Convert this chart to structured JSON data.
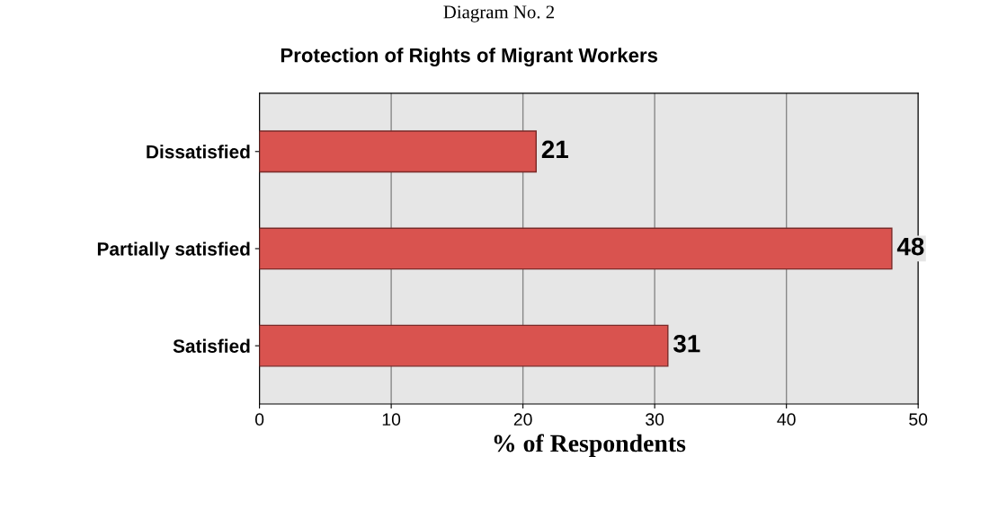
{
  "chart_data": {
    "type": "bar",
    "orientation": "horizontal",
    "title": "Protection of Rights of Migrant Workers",
    "xlabel": "% of Respondents",
    "annotations": [
      "Diagram No. 2"
    ],
    "categories": [
      "Dissatisfied",
      "Partially satisfied",
      "Satisfied"
    ],
    "values": [
      21,
      48,
      31
    ],
    "color": "#d9534f",
    "xlim": [
      0,
      50
    ],
    "xticks": [
      0,
      10,
      20,
      30,
      40,
      50
    ],
    "grid": "x",
    "data_labels": true
  }
}
